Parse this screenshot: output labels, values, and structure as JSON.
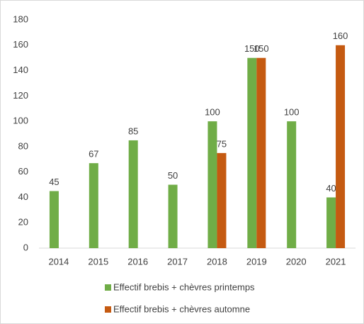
{
  "chart_data": {
    "type": "bar",
    "categories": [
      "2014",
      "2015",
      "2016",
      "2017",
      "2018",
      "2019",
      "2020",
      "2021"
    ],
    "series": [
      {
        "name": "Effectif brebis + chèvres printemps",
        "color": "#70ad47",
        "values": [
          45,
          67,
          85,
          50,
          100,
          150,
          100,
          40
        ]
      },
      {
        "name": "Effectif brebis + chèvres automne",
        "color": "#c55a11",
        "values": [
          null,
          null,
          null,
          null,
          75,
          150,
          null,
          160
        ]
      }
    ],
    "ylim": [
      0,
      180
    ],
    "yticks": [
      0,
      20,
      40,
      60,
      80,
      100,
      120,
      140,
      160,
      180
    ],
    "grid": false,
    "legend": "bottom"
  }
}
